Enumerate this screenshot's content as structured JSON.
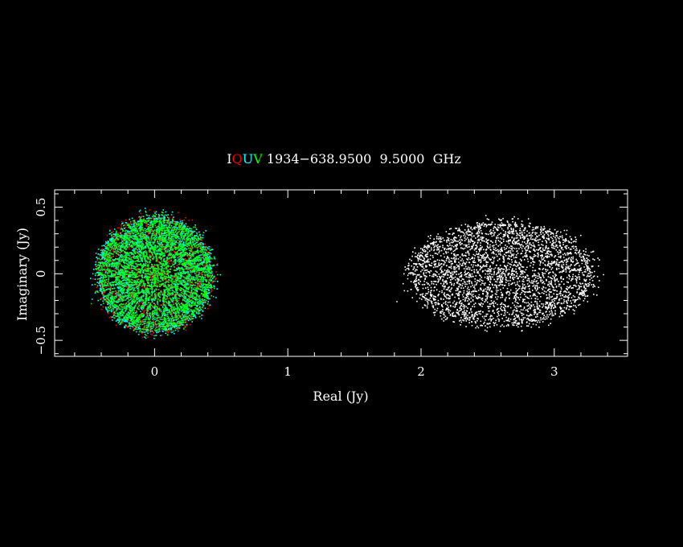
{
  "chart_data": {
    "type": "scatter",
    "title": {
      "stokes_labels": [
        {
          "text": "I",
          "color": "#ffffff"
        },
        {
          "text": "Q",
          "color": "#ff0000"
        },
        {
          "text": "U",
          "color": "#00ffff"
        },
        {
          "text": "V",
          "color": "#00ff00"
        }
      ],
      "rest": " 1934−638.9500  9.5000  GHz"
    },
    "xlabel": "Real (Jy)",
    "ylabel": "Imaginary (Jy)",
    "xlim": [
      -0.75,
      3.55
    ],
    "ylim": [
      -0.62,
      0.63
    ],
    "xticks": [
      {
        "value": 0,
        "label": "0"
      },
      {
        "value": 1,
        "label": "1"
      },
      {
        "value": 2,
        "label": "2"
      },
      {
        "value": 3,
        "label": "3"
      }
    ],
    "yticks": [
      {
        "value": -0.5,
        "label": "−0.5"
      },
      {
        "value": 0,
        "label": "0"
      },
      {
        "value": 0.5,
        "label": "0.5"
      }
    ],
    "series": [
      {
        "name": "Q",
        "color": "#ff0000",
        "center": [
          0.0,
          0.0
        ],
        "radius": [
          0.46,
          0.46
        ],
        "points": 1600
      },
      {
        "name": "U",
        "color": "#00ffff",
        "center": [
          0.0,
          0.0
        ],
        "radius": [
          0.46,
          0.46
        ],
        "points": 2600
      },
      {
        "name": "V",
        "color": "#00ff00",
        "center": [
          0.0,
          0.0
        ],
        "radius": [
          0.44,
          0.44
        ],
        "points": 26000
      },
      {
        "name": "I",
        "color": "#ffffff",
        "center": [
          2.6,
          0.0
        ],
        "radius": [
          0.72,
          0.41
        ],
        "points": 26000
      }
    ]
  }
}
